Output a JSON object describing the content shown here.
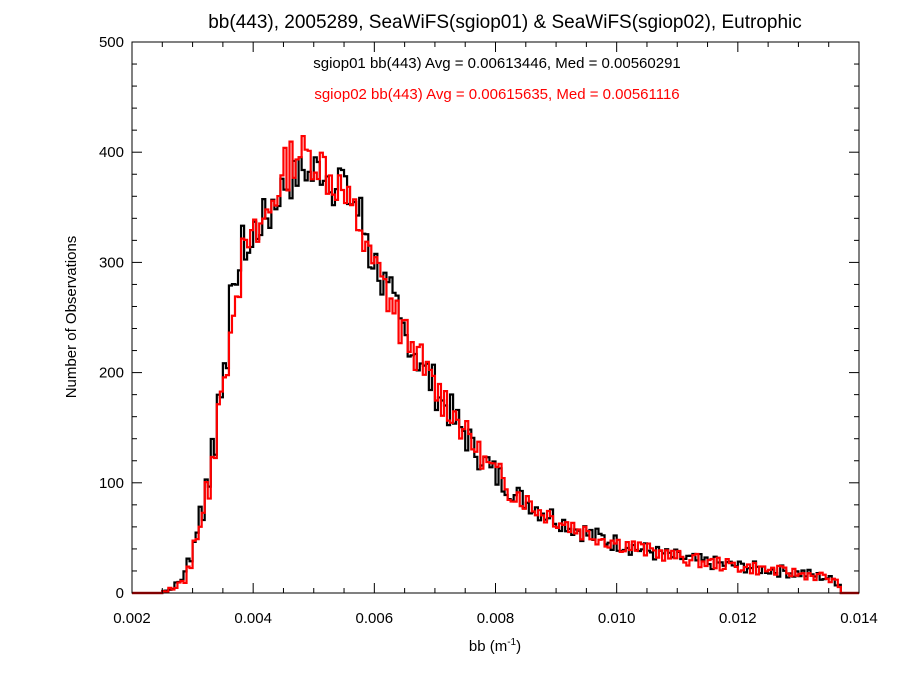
{
  "chart_data": {
    "type": "histogram",
    "title": "bb(443), 2005289, SeaWiFS(sgiop01) & SeaWiFS(sgiop02), Eutrophic",
    "xlabel_base": "bb (m",
    "xlabel_sup": "-1",
    "xlabel_end": ")",
    "ylabel": "Number of Observations",
    "xlim": [
      0.002,
      0.014
    ],
    "ylim": [
      0,
      500
    ],
    "xticks": [
      "0.002",
      "0.004",
      "0.006",
      "0.008",
      "0.010",
      "0.012",
      "0.014"
    ],
    "yticks": [
      "0",
      "100",
      "200",
      "300",
      "400",
      "500"
    ],
    "annotations": [
      {
        "text": "sgiop01 bb(443) Avg = 0.00613446, Med = 0.00560291",
        "color": "#000000"
      },
      {
        "text": "sgiop02 bb(443) Avg = 0.00615635, Med = 0.00561116",
        "color": "#ff0000"
      }
    ],
    "bin_width": 5e-05,
    "series": [
      {
        "color": "#000000",
        "bins": [
          [
            0.0025,
            2
          ],
          [
            0.0026,
            5
          ],
          [
            0.0027,
            10
          ],
          [
            0.0028,
            16
          ],
          [
            0.0029,
            30
          ],
          [
            0.003,
            50
          ],
          [
            0.0031,
            75
          ],
          [
            0.0032,
            103
          ],
          [
            0.0033,
            135
          ],
          [
            0.0034,
            178
          ],
          [
            0.0035,
            220
          ],
          [
            0.0036,
            262
          ],
          [
            0.0037,
            295
          ],
          [
            0.0038,
            315
          ],
          [
            0.0039,
            312
          ],
          [
            0.004,
            330
          ],
          [
            0.0041,
            338
          ],
          [
            0.0042,
            342
          ],
          [
            0.0043,
            355
          ],
          [
            0.0044,
            365
          ],
          [
            0.0045,
            372
          ],
          [
            0.0046,
            375
          ],
          [
            0.0047,
            380
          ],
          [
            0.0048,
            385
          ],
          [
            0.0049,
            378
          ],
          [
            0.005,
            385
          ],
          [
            0.0051,
            385
          ],
          [
            0.0052,
            380
          ],
          [
            0.0053,
            370
          ],
          [
            0.0054,
            378
          ],
          [
            0.0055,
            360
          ],
          [
            0.0056,
            355
          ],
          [
            0.0057,
            345
          ],
          [
            0.0058,
            328
          ],
          [
            0.0059,
            305
          ],
          [
            0.006,
            298
          ],
          [
            0.0061,
            280
          ],
          [
            0.0062,
            268
          ],
          [
            0.0063,
            256
          ],
          [
            0.0064,
            240
          ],
          [
            0.0065,
            232
          ],
          [
            0.0066,
            222
          ],
          [
            0.0067,
            212
          ],
          [
            0.0068,
            200
          ],
          [
            0.0069,
            192
          ],
          [
            0.007,
            182
          ],
          [
            0.0071,
            172
          ],
          [
            0.0072,
            165
          ],
          [
            0.0073,
            155
          ],
          [
            0.0074,
            148
          ],
          [
            0.0075,
            140
          ],
          [
            0.0076,
            130
          ],
          [
            0.0077,
            125
          ],
          [
            0.0078,
            118
          ],
          [
            0.0079,
            110
          ],
          [
            0.008,
            105
          ],
          [
            0.0081,
            100
          ],
          [
            0.0082,
            95
          ],
          [
            0.0083,
            88
          ],
          [
            0.0084,
            85
          ],
          [
            0.0085,
            82
          ],
          [
            0.0086,
            78
          ],
          [
            0.0087,
            75
          ],
          [
            0.0088,
            72
          ],
          [
            0.0089,
            70
          ],
          [
            0.009,
            66
          ],
          [
            0.0091,
            64
          ],
          [
            0.0092,
            60
          ],
          [
            0.0093,
            58
          ],
          [
            0.0094,
            56
          ],
          [
            0.0095,
            53
          ],
          [
            0.0096,
            51
          ],
          [
            0.0097,
            50
          ],
          [
            0.0098,
            48
          ],
          [
            0.0099,
            46
          ],
          [
            0.01,
            45
          ],
          [
            0.0101,
            44
          ],
          [
            0.0102,
            42
          ],
          [
            0.0103,
            40
          ],
          [
            0.0104,
            39
          ],
          [
            0.0105,
            38
          ],
          [
            0.0106,
            36
          ],
          [
            0.0107,
            36
          ],
          [
            0.0108,
            34
          ],
          [
            0.0109,
            33
          ],
          [
            0.011,
            32
          ],
          [
            0.0111,
            31
          ],
          [
            0.0112,
            30
          ],
          [
            0.0113,
            29
          ],
          [
            0.0114,
            28
          ],
          [
            0.0115,
            27
          ],
          [
            0.0116,
            27
          ],
          [
            0.0117,
            26
          ],
          [
            0.0118,
            25
          ],
          [
            0.0119,
            25
          ],
          [
            0.012,
            24
          ],
          [
            0.0121,
            24
          ],
          [
            0.0122,
            23
          ],
          [
            0.0123,
            22
          ],
          [
            0.0124,
            22
          ],
          [
            0.0125,
            21
          ],
          [
            0.0126,
            20
          ],
          [
            0.0127,
            20
          ],
          [
            0.0128,
            19
          ],
          [
            0.0129,
            18
          ],
          [
            0.013,
            18
          ],
          [
            0.0131,
            17
          ],
          [
            0.0132,
            16
          ],
          [
            0.0133,
            15
          ],
          [
            0.0134,
            14
          ],
          [
            0.0135,
            12
          ],
          [
            0.0136,
            10
          ],
          [
            0.0137,
            0
          ]
        ]
      },
      {
        "color": "#ff0000",
        "bins": [
          [
            0.0025,
            1
          ],
          [
            0.0026,
            3
          ],
          [
            0.0027,
            7
          ],
          [
            0.0028,
            13
          ],
          [
            0.0029,
            25
          ],
          [
            0.003,
            43
          ],
          [
            0.0031,
            68
          ],
          [
            0.0032,
            96
          ],
          [
            0.0033,
            128
          ],
          [
            0.0034,
            168
          ],
          [
            0.0035,
            210
          ],
          [
            0.0036,
            252
          ],
          [
            0.0037,
            285
          ],
          [
            0.0038,
            305
          ],
          [
            0.0039,
            318
          ],
          [
            0.004,
            322
          ],
          [
            0.0041,
            335
          ],
          [
            0.0042,
            345
          ],
          [
            0.0043,
            360
          ],
          [
            0.0044,
            372
          ],
          [
            0.0045,
            385
          ],
          [
            0.0046,
            395
          ],
          [
            0.0047,
            400
          ],
          [
            0.0048,
            398
          ],
          [
            0.0049,
            395
          ],
          [
            0.005,
            392
          ],
          [
            0.0051,
            390
          ],
          [
            0.0052,
            378
          ],
          [
            0.0053,
            372
          ],
          [
            0.0054,
            368
          ],
          [
            0.0055,
            352
          ],
          [
            0.0056,
            345
          ],
          [
            0.0057,
            335
          ],
          [
            0.0058,
            318
          ],
          [
            0.0059,
            300
          ],
          [
            0.006,
            292
          ],
          [
            0.0061,
            278
          ],
          [
            0.0062,
            268
          ],
          [
            0.0063,
            254
          ],
          [
            0.0064,
            240
          ],
          [
            0.0065,
            232
          ],
          [
            0.0066,
            220
          ],
          [
            0.0067,
            210
          ],
          [
            0.0068,
            200
          ],
          [
            0.0069,
            192
          ],
          [
            0.007,
            182
          ],
          [
            0.0071,
            175
          ],
          [
            0.0072,
            168
          ],
          [
            0.0073,
            160
          ],
          [
            0.0074,
            152
          ],
          [
            0.0075,
            142
          ],
          [
            0.0076,
            134
          ],
          [
            0.0077,
            126
          ],
          [
            0.0078,
            118
          ],
          [
            0.0079,
            112
          ],
          [
            0.008,
            106
          ],
          [
            0.0081,
            100
          ],
          [
            0.0082,
            94
          ],
          [
            0.0083,
            90
          ],
          [
            0.0084,
            86
          ],
          [
            0.0085,
            82
          ],
          [
            0.0086,
            78
          ],
          [
            0.0087,
            74
          ],
          [
            0.0088,
            72
          ],
          [
            0.0089,
            69
          ],
          [
            0.009,
            66
          ],
          [
            0.0091,
            63
          ],
          [
            0.0092,
            61
          ],
          [
            0.0093,
            58
          ],
          [
            0.0094,
            56
          ],
          [
            0.0095,
            54
          ],
          [
            0.0096,
            52
          ],
          [
            0.0097,
            50
          ],
          [
            0.0098,
            48
          ],
          [
            0.0099,
            47
          ],
          [
            0.01,
            45
          ],
          [
            0.0101,
            44
          ],
          [
            0.0102,
            42
          ],
          [
            0.0103,
            41
          ],
          [
            0.0104,
            39
          ],
          [
            0.0105,
            38
          ],
          [
            0.0106,
            37
          ],
          [
            0.0107,
            36
          ],
          [
            0.0108,
            34
          ],
          [
            0.0109,
            33
          ],
          [
            0.011,
            32
          ],
          [
            0.0111,
            31
          ],
          [
            0.0112,
            30
          ],
          [
            0.0113,
            29
          ],
          [
            0.0114,
            28
          ],
          [
            0.0115,
            27
          ],
          [
            0.0116,
            27
          ],
          [
            0.0117,
            26
          ],
          [
            0.0118,
            25
          ],
          [
            0.0119,
            25
          ],
          [
            0.012,
            24
          ],
          [
            0.0121,
            23
          ],
          [
            0.0122,
            23
          ],
          [
            0.0123,
            22
          ],
          [
            0.0124,
            21
          ],
          [
            0.0125,
            21
          ],
          [
            0.0126,
            20
          ],
          [
            0.0127,
            19
          ],
          [
            0.0128,
            19
          ],
          [
            0.0129,
            18
          ],
          [
            0.013,
            17
          ],
          [
            0.0131,
            17
          ],
          [
            0.0132,
            16
          ],
          [
            0.0133,
            15
          ],
          [
            0.0134,
            14
          ],
          [
            0.0135,
            12
          ],
          [
            0.0136,
            9
          ],
          [
            0.0137,
            0
          ]
        ]
      }
    ]
  }
}
